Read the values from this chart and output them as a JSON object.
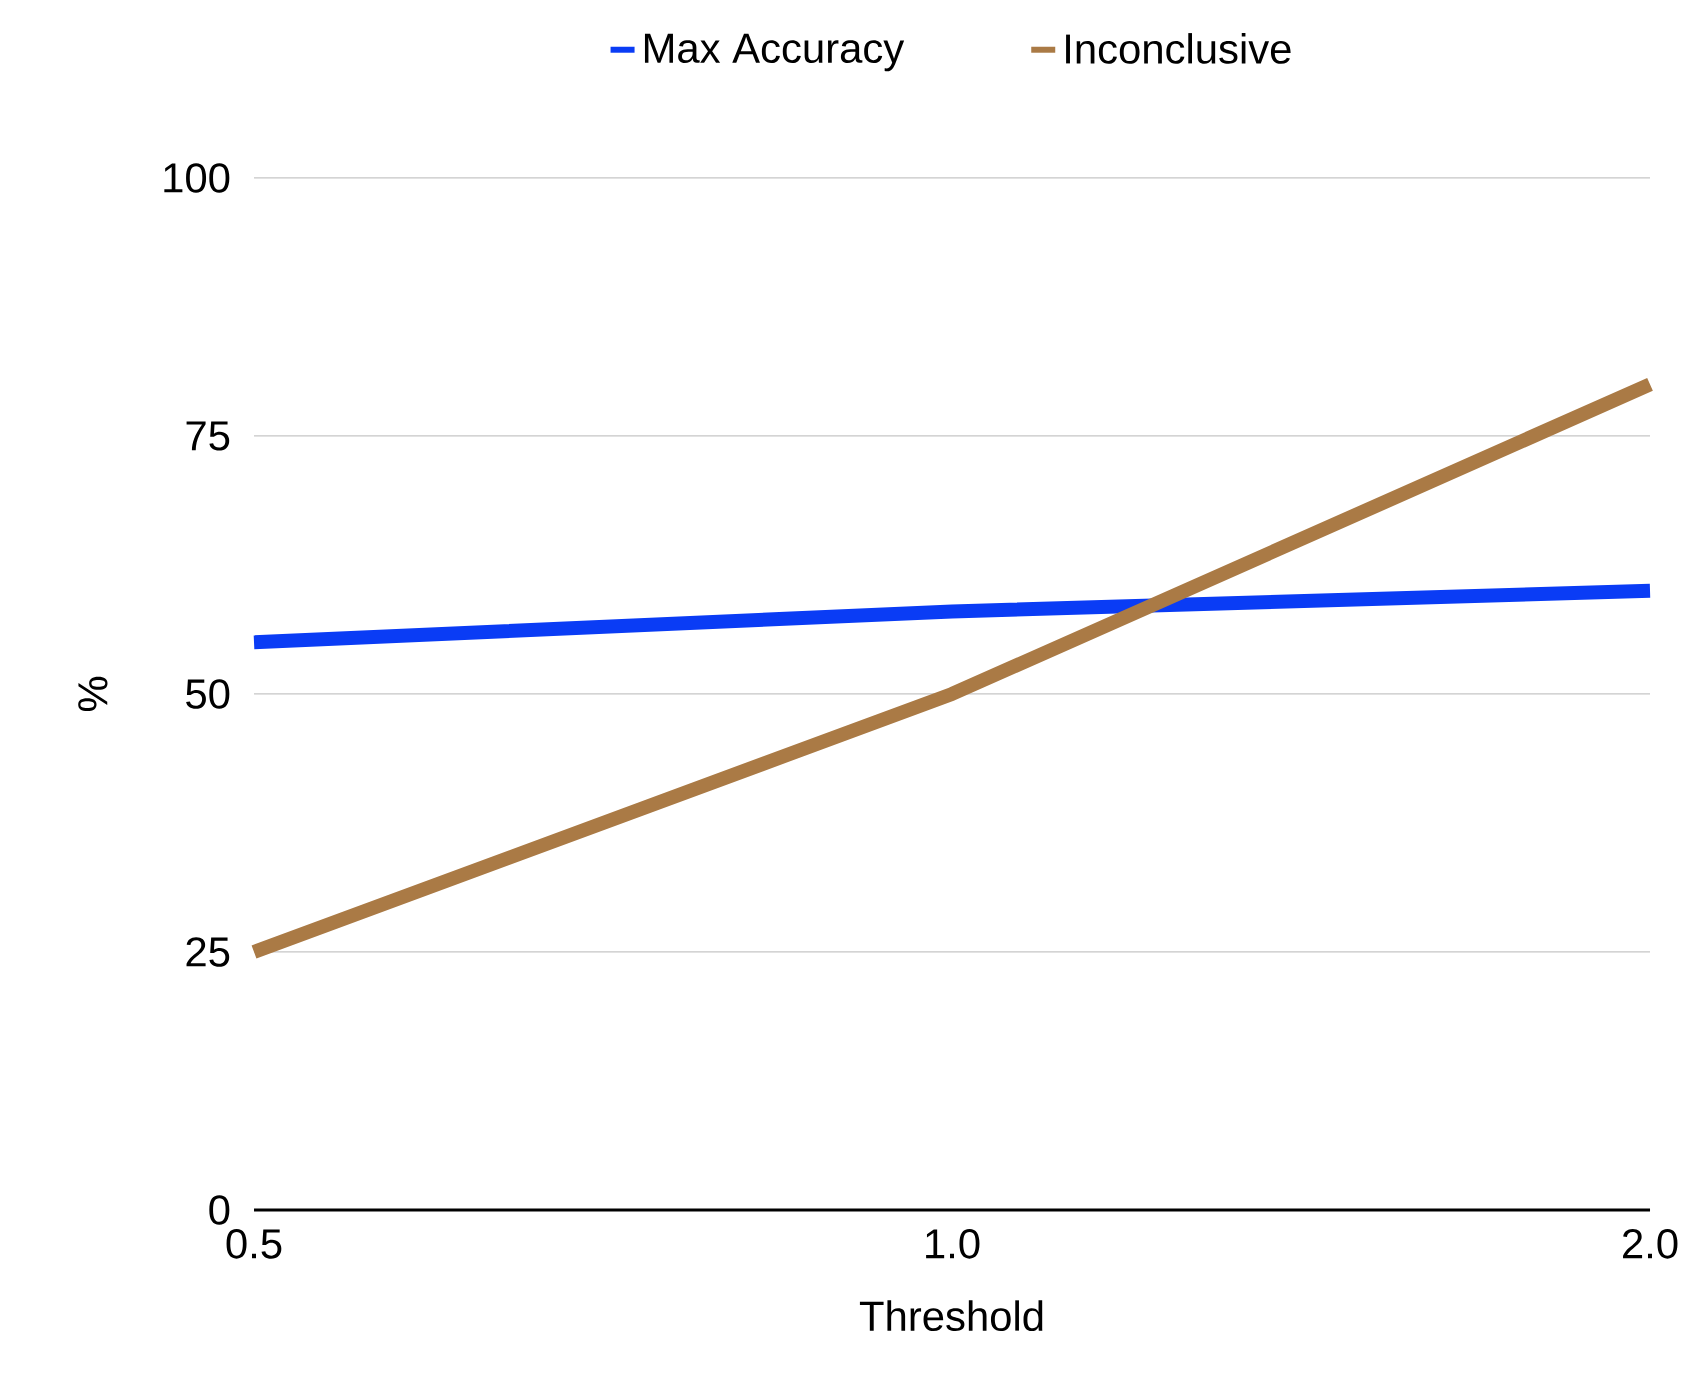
{
  "chart_data": {
    "type": "line",
    "xlabel": "Threshold",
    "ylabel": "%",
    "categories": [
      "0.5",
      "1.0",
      "2.0"
    ],
    "series": [
      {
        "name": "Max Accuracy",
        "color": "#0a3cf5",
        "values": [
          55,
          58,
          60
        ]
      },
      {
        "name": "Inconclusive",
        "color": "#aa7a45",
        "values": [
          25,
          50,
          80
        ]
      }
    ],
    "ylim": [
      0,
      100
    ],
    "yticks": [
      0,
      25,
      50,
      75,
      100
    ],
    "grid": "y",
    "legend": "top",
    "marker": "none",
    "line_style": "solid"
  }
}
